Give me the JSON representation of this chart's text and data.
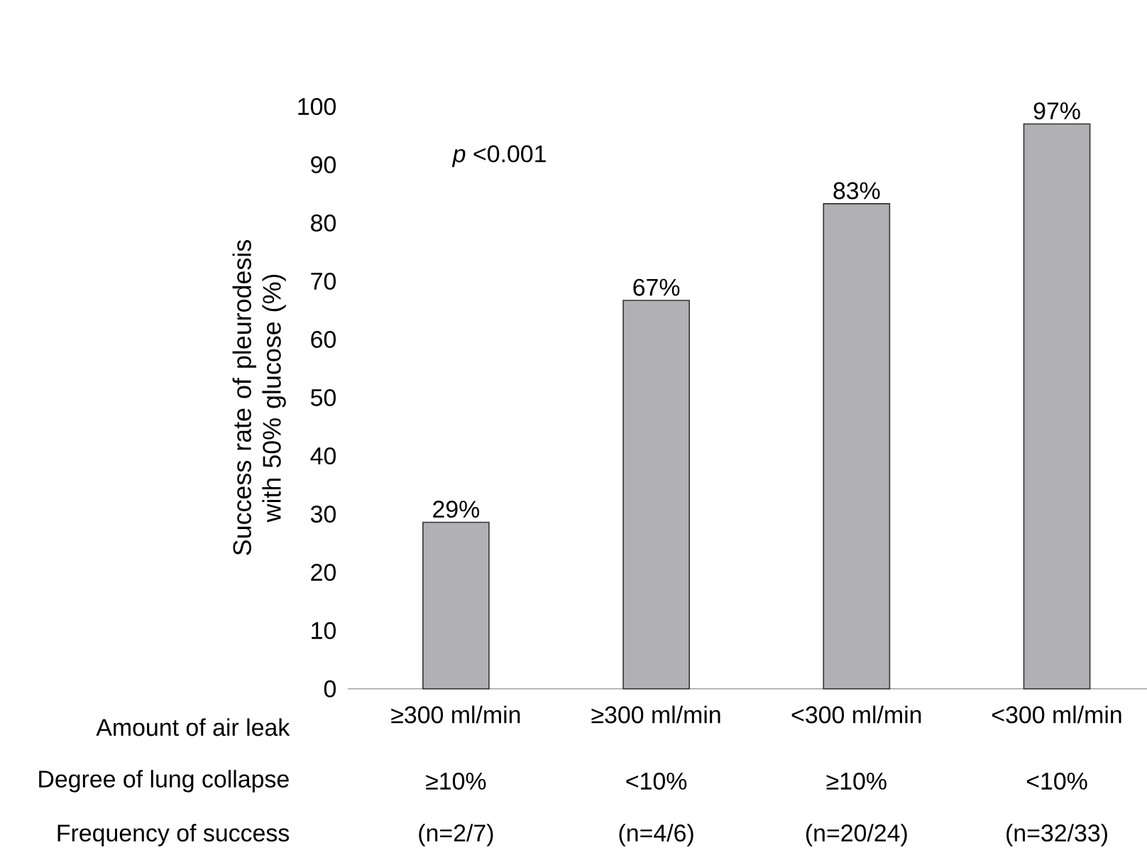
{
  "chart_data": {
    "type": "bar",
    "ylabel": "Success rate of pleurodesis with 50% glucose (%)",
    "categories": [
      "≥300 ml/min",
      "≥300 ml/min",
      "<300 ml/min",
      "<300 ml/min"
    ],
    "values": [
      28.6,
      66.7,
      83.3,
      97.0
    ],
    "value_labels": [
      "29%",
      "67%",
      "83%",
      "97%"
    ],
    "color": "#b1b1b4",
    "ylim": [
      0,
      100
    ],
    "yticks": [
      0,
      10,
      20,
      30,
      40,
      50,
      60,
      70,
      80,
      90,
      100
    ],
    "annotations": [
      "*p* <0.001",
      "Amount of air leak",
      "Degree of lung collapse",
      "Frequency of success",
      "≥10%",
      "<10%",
      "≥10%",
      "<10%",
      "(n=2/7)",
      "(n=4/6)",
      "(n=20/24)",
      "(n=32/33)"
    ]
  }
}
